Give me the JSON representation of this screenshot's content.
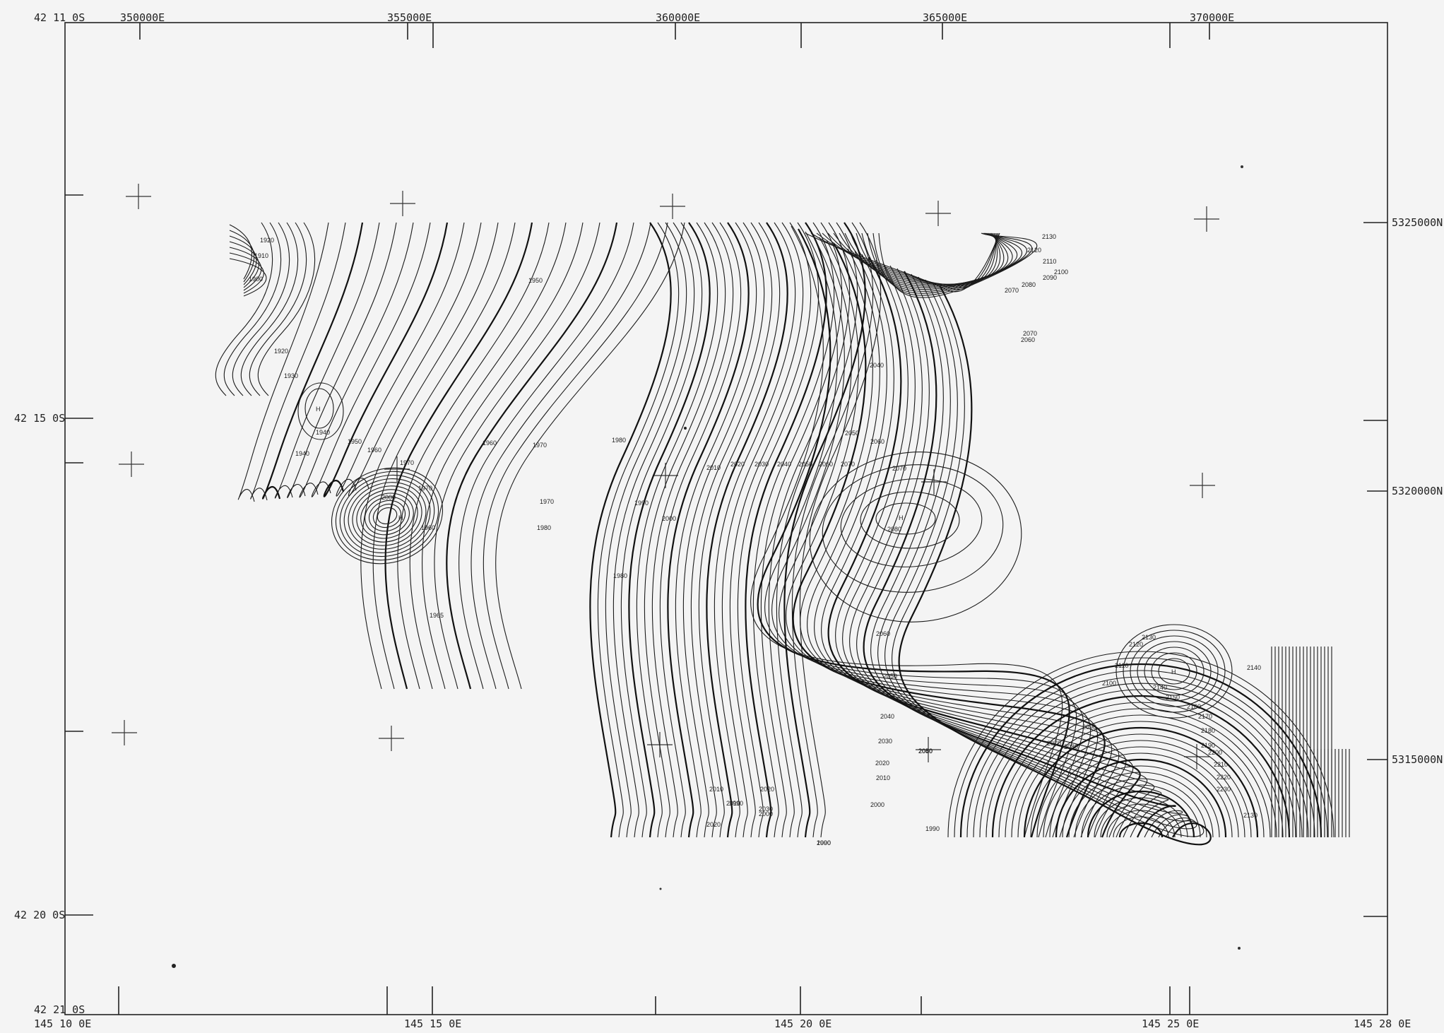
{
  "map": {
    "corners": {
      "top_left_lat": "42 11  0S",
      "mid_left_lat_top": "42 15  0S",
      "mid_left_lat_bottom": "42 20  0S",
      "bottom_left_lat": "42 21  0S"
    },
    "top_eastings": [
      "350000E",
      "355000E",
      "360000E",
      "365000E",
      "370000E"
    ],
    "right_northings": [
      "5325000N",
      "5320000N",
      "5315000N"
    ],
    "bottom_longitudes": [
      "145 10  0E",
      "145 15  0E",
      "145 20  0E",
      "145 25  0E",
      "145 28  0E"
    ],
    "contour_labels": [
      {
        "text": "1920"
      },
      {
        "text": "1910"
      },
      {
        "text": "1900"
      },
      {
        "text": "1920"
      },
      {
        "text": "1930"
      },
      {
        "text": "1940"
      },
      {
        "text": "1940"
      },
      {
        "text": "1950"
      },
      {
        "text": "1960"
      },
      {
        "text": "1970"
      },
      {
        "text": "2000"
      },
      {
        "text": "1970"
      },
      {
        "text": "1960"
      },
      {
        "text": "1965"
      },
      {
        "text": "1960"
      },
      {
        "text": "1970"
      },
      {
        "text": "1980"
      },
      {
        "text": "1950"
      },
      {
        "text": "1970"
      },
      {
        "text": "1980"
      },
      {
        "text": "1990"
      },
      {
        "text": "1980"
      },
      {
        "text": "2000"
      },
      {
        "text": "2010"
      },
      {
        "text": "2020"
      },
      {
        "text": "2030"
      },
      {
        "text": "2040"
      },
      {
        "text": "2050"
      },
      {
        "text": "2060"
      },
      {
        "text": "2070"
      },
      {
        "text": "2040"
      },
      {
        "text": "2050"
      },
      {
        "text": "2060"
      },
      {
        "text": "2070"
      },
      {
        "text": "2080"
      },
      {
        "text": "2060"
      },
      {
        "text": "2050"
      },
      {
        "text": "2040"
      },
      {
        "text": "2030"
      },
      {
        "text": "2020"
      },
      {
        "text": "2010"
      },
      {
        "text": "2000"
      },
      {
        "text": "1990"
      },
      {
        "text": "2020"
      },
      {
        "text": "2010"
      },
      {
        "text": "2000"
      },
      {
        "text": "1990"
      },
      {
        "text": "1990"
      },
      {
        "text": "2000"
      },
      {
        "text": "2010"
      },
      {
        "text": "2020"
      },
      {
        "text": "2030"
      },
      {
        "text": "2040"
      },
      {
        "text": "2050"
      },
      {
        "text": "2060"
      },
      {
        "text": "2130"
      },
      {
        "text": "2120"
      },
      {
        "text": "2110"
      },
      {
        "text": "2100"
      },
      {
        "text": "2090"
      },
      {
        "text": "2080"
      },
      {
        "text": "2070"
      },
      {
        "text": "2070"
      },
      {
        "text": "2060"
      },
      {
        "text": "2070"
      },
      {
        "text": "2080"
      },
      {
        "text": "2090"
      },
      {
        "text": "2100"
      },
      {
        "text": "2110"
      },
      {
        "text": "2120"
      },
      {
        "text": "2130"
      },
      {
        "text": "2140"
      },
      {
        "text": "2150"
      },
      {
        "text": "2160"
      },
      {
        "text": "2170"
      },
      {
        "text": "2180"
      },
      {
        "text": "2190"
      },
      {
        "text": "2200"
      },
      {
        "text": "2210"
      },
      {
        "text": "2220"
      },
      {
        "text": "2230"
      },
      {
        "text": "2130"
      },
      {
        "text": "2140"
      }
    ],
    "highs": [
      {
        "text": "H"
      },
      {
        "text": "H"
      },
      {
        "text": "H"
      },
      {
        "text": "H"
      }
    ]
  }
}
